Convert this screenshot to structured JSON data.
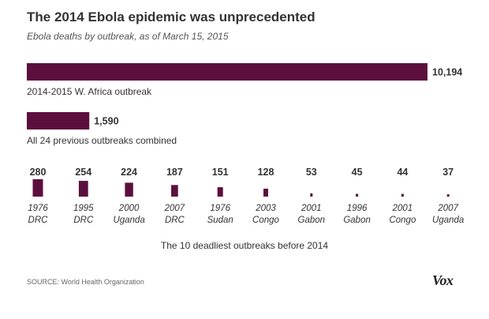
{
  "header": {
    "title": "The 2014 Ebola epidemic was unprecedented",
    "subtitle": "Ebola deaths by outbreak, as of March 15, 2015"
  },
  "footer": {
    "source": "SOURCE: World Health Organization",
    "logo": "Vox"
  },
  "colors": {
    "bar": "#5c0f3d",
    "text": "#333333",
    "muted": "#555555"
  },
  "chart_data": [
    {
      "type": "bar",
      "orientation": "horizontal",
      "categories": [
        "2014-2015 W. Africa outbreak",
        "All 24 previous outbreaks combined"
      ],
      "values": [
        10194,
        1590
      ],
      "value_labels": [
        "10,194",
        "1,590"
      ],
      "xlim": [
        0,
        10194
      ]
    },
    {
      "type": "bar",
      "orientation": "vertical",
      "title": "The 10 deadliest outbreaks before 2014",
      "categories": [
        {
          "year": "1976",
          "place": "DRC"
        },
        {
          "year": "1995",
          "place": "DRC"
        },
        {
          "year": "2000",
          "place": "Uganda"
        },
        {
          "year": "2007",
          "place": "DRC"
        },
        {
          "year": "1976",
          "place": "Sudan"
        },
        {
          "year": "2003",
          "place": "Congo"
        },
        {
          "year": "2001",
          "place": "Gabon"
        },
        {
          "year": "1996",
          "place": "Gabon"
        },
        {
          "year": "2001",
          "place": "Congo"
        },
        {
          "year": "2007",
          "place": "Uganda"
        }
      ],
      "values": [
        280,
        254,
        224,
        187,
        151,
        128,
        53,
        45,
        44,
        37
      ]
    }
  ]
}
